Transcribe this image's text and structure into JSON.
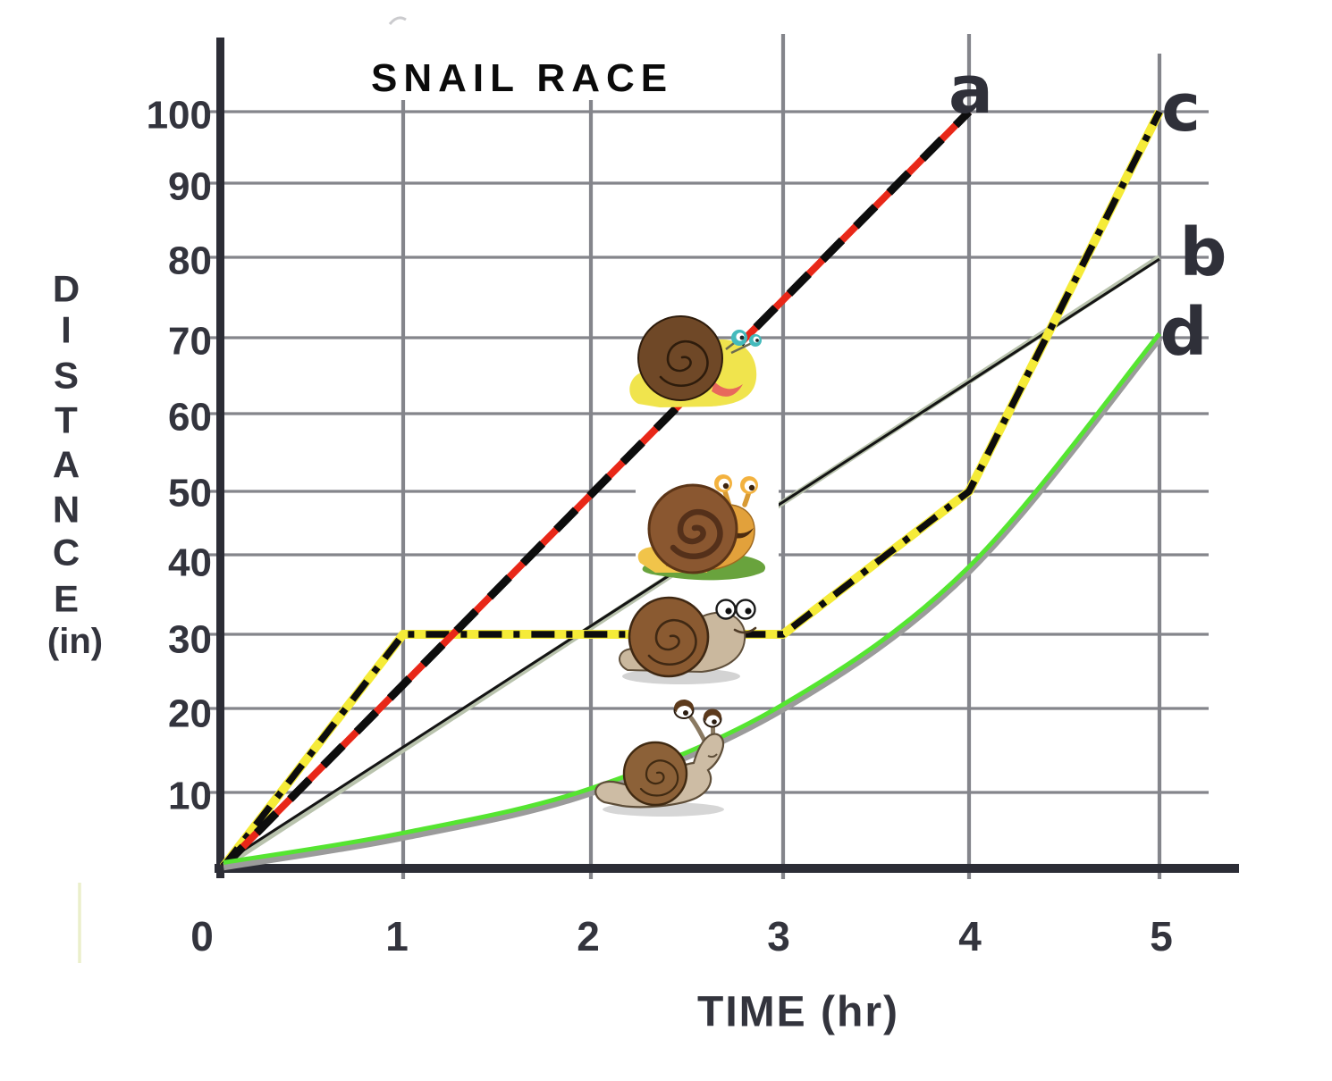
{
  "title": "SNAIL RACE",
  "axes": {
    "x_title": "TIME  (hr)",
    "y_title_letters": [
      "D",
      "I",
      "S",
      "T",
      "A",
      "N",
      "C",
      "E"
    ],
    "y_title_unit": "(in)",
    "x_ticks": [
      "0",
      "1",
      "2",
      "3",
      "4",
      "5"
    ],
    "y_ticks": [
      "100",
      "90",
      "80",
      "70",
      "60",
      "50",
      "40",
      "30",
      "20",
      "10"
    ]
  },
  "colors": {
    "axis_text": "#33343d",
    "grid": "#84858b",
    "axis": "#2c2d36",
    "a_red": "#e82718",
    "b_sage": "#b9c3ad",
    "b_black": "#141414",
    "c_yellow": "#f5eb38",
    "dash_black": "#0d0d0d",
    "d_gray": "#9b9b9b",
    "d_green": "#55e531"
  },
  "chart_data": {
    "type": "line",
    "title": "SNAIL RACE",
    "xlabel": "TIME (hr)",
    "ylabel": "DISTANCE (in)",
    "xlim": [
      0,
      5.4
    ],
    "ylim": [
      0,
      105
    ],
    "grid": true,
    "x_tick_values": [
      0,
      1,
      2,
      3,
      4,
      5
    ],
    "y_tick_values": [
      10,
      20,
      30,
      40,
      50,
      60,
      70,
      80,
      90,
      100
    ],
    "series": [
      {
        "id": "a",
        "label": "a",
        "style": "red line with black dashes",
        "points": [
          [
            0,
            0
          ],
          [
            4,
            100
          ]
        ],
        "curve": false
      },
      {
        "id": "b",
        "label": "b",
        "style": "thin black line over sage band",
        "points": [
          [
            0,
            0
          ],
          [
            5,
            80
          ]
        ],
        "curve": false
      },
      {
        "id": "c",
        "label": "c",
        "style": "yellow line with black dash-dot",
        "points": [
          [
            0,
            0
          ],
          [
            1,
            30
          ],
          [
            3,
            30
          ],
          [
            4,
            50
          ],
          [
            5,
            100
          ]
        ],
        "curve": false
      },
      {
        "id": "d",
        "label": "d",
        "style": "gray curve with green edge",
        "points": [
          [
            0,
            0
          ],
          [
            1,
            4
          ],
          [
            2,
            10
          ],
          [
            3,
            20
          ],
          [
            4,
            38
          ],
          [
            5,
            70
          ]
        ],
        "curve": true
      }
    ]
  },
  "decorations": {
    "snails": [
      {
        "icon": "yellow-snail-icon",
        "near_series": "a"
      },
      {
        "icon": "orange-snail-icon",
        "near_series": "b"
      },
      {
        "icon": "tan-snail-icon",
        "near_series": "c"
      },
      {
        "icon": "gray-snail-icon",
        "near_series": "d"
      }
    ]
  }
}
